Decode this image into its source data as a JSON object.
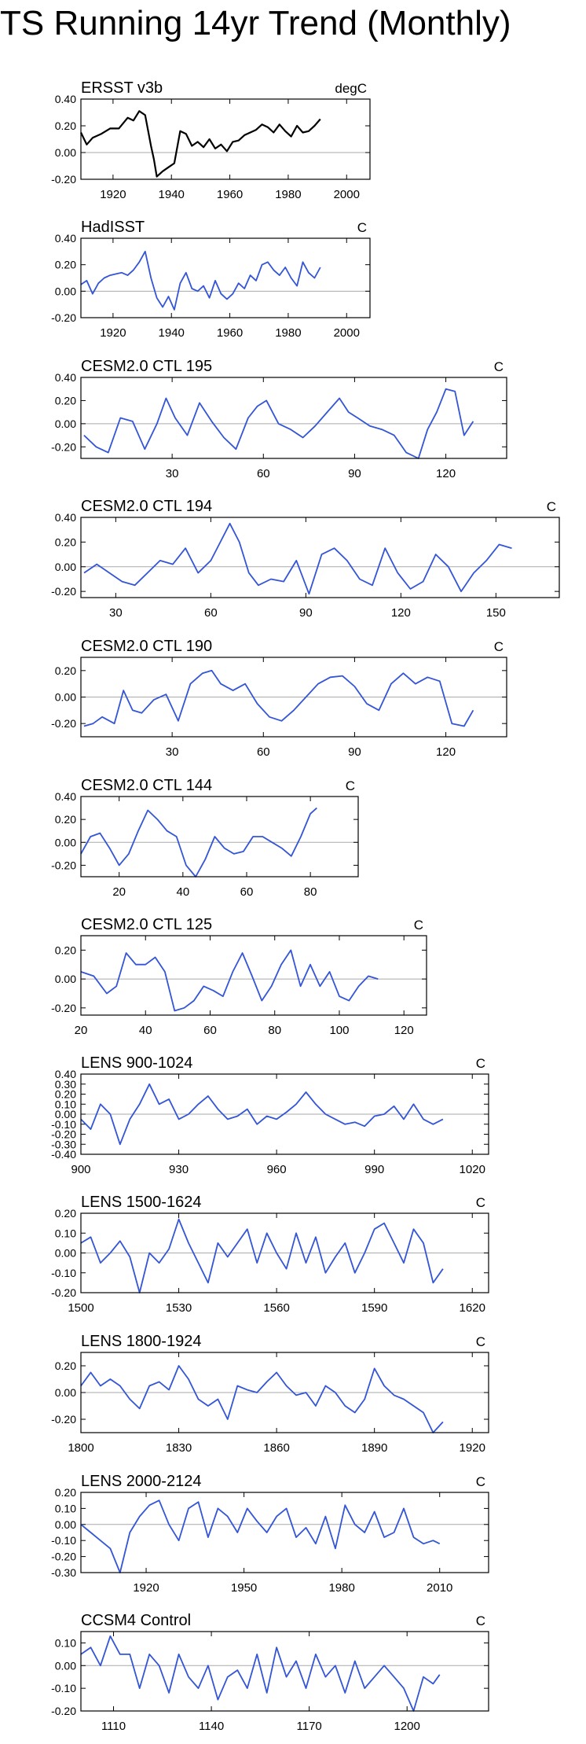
{
  "page": {
    "title": "TS Running 14yr Trend (Monthly)"
  },
  "colors": {
    "black_line": "#000000",
    "blue_line": "#3355d6",
    "zero_line": "#aaaaaa"
  },
  "chart_data": [
    {
      "type": "line",
      "title": "ERSST v3b",
      "units": "degC",
      "color": "#000000",
      "xlim": [
        1909,
        2008
      ],
      "xticks": [
        1920,
        1940,
        1960,
        1980,
        2000
      ],
      "ylim": [
        -0.2,
        0.4
      ],
      "yticks": [
        -0.2,
        0.0,
        0.2,
        0.4
      ],
      "ytick_labels": [
        "-0.20",
        "0.00",
        "0.20",
        "0.40"
      ],
      "x": [
        1909,
        1911,
        1913,
        1916,
        1919,
        1922,
        1925,
        1927,
        1929,
        1931,
        1933,
        1934,
        1935,
        1937,
        1939,
        1941,
        1943,
        1945,
        1947,
        1949,
        1951,
        1953,
        1955,
        1957,
        1959,
        1961,
        1963,
        1965,
        1967,
        1969,
        1971,
        1973,
        1975,
        1977,
        1979,
        1981,
        1983,
        1985,
        1987,
        1989,
        1991
      ],
      "y": [
        0.15,
        0.06,
        0.11,
        0.14,
        0.18,
        0.18,
        0.26,
        0.24,
        0.31,
        0.28,
        0.05,
        -0.05,
        -0.18,
        -0.14,
        -0.11,
        -0.08,
        0.16,
        0.14,
        0.05,
        0.08,
        0.04,
        0.1,
        0.03,
        0.06,
        0.01,
        0.08,
        0.09,
        0.13,
        0.15,
        0.17,
        0.21,
        0.19,
        0.15,
        0.21,
        0.16,
        0.12,
        0.2,
        0.15,
        0.16,
        0.2,
        0.25
      ]
    },
    {
      "type": "line",
      "title": "HadISST",
      "units": "C",
      "color": "#3355d6",
      "xlim": [
        1909,
        2008
      ],
      "xticks": [
        1920,
        1940,
        1960,
        1980,
        2000
      ],
      "ylim": [
        -0.2,
        0.4
      ],
      "yticks": [
        -0.2,
        0.0,
        0.2,
        0.4
      ],
      "ytick_labels": [
        "-0.20",
        "0.00",
        "0.20",
        "0.40"
      ],
      "x": [
        1909,
        1911,
        1913,
        1915,
        1917,
        1919,
        1921,
        1923,
        1925,
        1927,
        1929,
        1931,
        1933,
        1935,
        1937,
        1939,
        1941,
        1943,
        1945,
        1947,
        1949,
        1951,
        1953,
        1955,
        1957,
        1959,
        1961,
        1963,
        1965,
        1967,
        1969,
        1971,
        1973,
        1975,
        1977,
        1979,
        1981,
        1983,
        1985,
        1987,
        1989,
        1991
      ],
      "y": [
        0.05,
        0.08,
        -0.02,
        0.06,
        0.1,
        0.12,
        0.13,
        0.14,
        0.12,
        0.16,
        0.22,
        0.3,
        0.1,
        -0.05,
        -0.12,
        -0.04,
        -0.14,
        0.06,
        0.14,
        0.02,
        0.0,
        0.04,
        -0.05,
        0.08,
        -0.02,
        -0.06,
        -0.02,
        0.06,
        0.02,
        0.12,
        0.08,
        0.2,
        0.22,
        0.16,
        0.12,
        0.18,
        0.1,
        0.04,
        0.22,
        0.14,
        0.1,
        0.18
      ]
    },
    {
      "type": "line",
      "title": "CESM2.0 CTL 195",
      "units": "C",
      "color": "#3355d6",
      "xlim": [
        0,
        140
      ],
      "xticks": [
        30,
        60,
        90,
        120
      ],
      "ylim": [
        -0.3,
        0.4
      ],
      "yticks": [
        -0.2,
        0.0,
        0.2,
        0.4
      ],
      "ytick_labels": [
        "-0.20",
        "0.00",
        "0.20",
        "0.40"
      ],
      "x": [
        1,
        5,
        9,
        13,
        17,
        21,
        25,
        28,
        31,
        35,
        39,
        43,
        47,
        51,
        55,
        58,
        61,
        65,
        69,
        73,
        77,
        81,
        85,
        88,
        91,
        95,
        99,
        103,
        107,
        111,
        114,
        117,
        120,
        123,
        126,
        129
      ],
      "y": [
        -0.1,
        -0.2,
        -0.25,
        0.05,
        0.02,
        -0.22,
        0.0,
        0.22,
        0.05,
        -0.1,
        0.18,
        0.02,
        -0.12,
        -0.22,
        0.05,
        0.15,
        0.2,
        0.0,
        -0.05,
        -0.12,
        -0.02,
        0.1,
        0.22,
        0.1,
        0.05,
        -0.02,
        -0.05,
        -0.1,
        -0.25,
        -0.3,
        -0.05,
        0.1,
        0.3,
        0.28,
        -0.1,
        0.02
      ]
    },
    {
      "type": "line",
      "title": "CESM2.0 CTL 194",
      "units": "C",
      "color": "#3355d6",
      "xlim": [
        19,
        170
      ],
      "xticks": [
        30,
        60,
        90,
        120,
        150
      ],
      "ylim": [
        -0.25,
        0.4
      ],
      "yticks": [
        -0.2,
        0.0,
        0.2,
        0.4
      ],
      "ytick_labels": [
        "-0.20",
        "0.00",
        "0.20",
        "0.40"
      ],
      "x": [
        20,
        24,
        28,
        32,
        36,
        40,
        44,
        48,
        52,
        56,
        60,
        63,
        66,
        69,
        72,
        75,
        79,
        83,
        87,
        91,
        95,
        99,
        103,
        107,
        111,
        115,
        119,
        123,
        127,
        131,
        135,
        139,
        143,
        147,
        151,
        155
      ],
      "y": [
        -0.05,
        0.02,
        -0.05,
        -0.12,
        -0.15,
        -0.05,
        0.05,
        0.02,
        0.15,
        -0.05,
        0.05,
        0.2,
        0.35,
        0.2,
        -0.05,
        -0.15,
        -0.1,
        -0.12,
        0.05,
        -0.22,
        0.1,
        0.15,
        0.05,
        -0.1,
        -0.15,
        0.15,
        -0.05,
        -0.18,
        -0.12,
        0.1,
        0.0,
        -0.2,
        -0.05,
        0.05,
        0.18,
        0.15
      ]
    },
    {
      "type": "line",
      "title": "CESM2.0 CTL 190",
      "units": "C",
      "color": "#3355d6",
      "xlim": [
        0,
        140
      ],
      "xticks": [
        30,
        60,
        90,
        120
      ],
      "ylim": [
        -0.3,
        0.3
      ],
      "yticks": [
        -0.2,
        0.0,
        0.2
      ],
      "ytick_labels": [
        "-0.20",
        "0.00",
        "0.20"
      ],
      "x": [
        1,
        4,
        7,
        11,
        14,
        17,
        20,
        24,
        28,
        32,
        36,
        40,
        43,
        46,
        50,
        54,
        58,
        62,
        66,
        70,
        74,
        78,
        82,
        86,
        90,
        94,
        98,
        102,
        106,
        110,
        114,
        118,
        122,
        126,
        129
      ],
      "y": [
        -0.22,
        -0.2,
        -0.15,
        -0.2,
        0.05,
        -0.1,
        -0.12,
        -0.02,
        0.02,
        -0.18,
        0.1,
        0.18,
        0.2,
        0.1,
        0.05,
        0.1,
        -0.05,
        -0.15,
        -0.18,
        -0.1,
        0.0,
        0.1,
        0.15,
        0.16,
        0.08,
        -0.05,
        -0.1,
        0.1,
        0.18,
        0.1,
        0.15,
        0.12,
        -0.2,
        -0.22,
        -0.1
      ]
    },
    {
      "type": "line",
      "title": "CESM2.0 CTL 144",
      "units": "C",
      "color": "#3355d6",
      "xlim": [
        8,
        95
      ],
      "xticks": [
        20,
        40,
        60,
        80
      ],
      "ylim": [
        -0.3,
        0.4
      ],
      "yticks": [
        -0.2,
        0.0,
        0.2,
        0.4
      ],
      "ytick_labels": [
        "-0.20",
        "0.00",
        "0.20",
        "0.40"
      ],
      "x": [
        8,
        11,
        14,
        17,
        20,
        23,
        26,
        29,
        32,
        35,
        38,
        41,
        44,
        47,
        50,
        53,
        56,
        59,
        62,
        65,
        68,
        71,
        74,
        77,
        80,
        82
      ],
      "y": [
        -0.1,
        0.05,
        0.08,
        -0.05,
        -0.2,
        -0.1,
        0.1,
        0.28,
        0.2,
        0.1,
        0.05,
        -0.2,
        -0.3,
        -0.15,
        0.05,
        -0.05,
        -0.1,
        -0.08,
        0.05,
        0.05,
        0.0,
        -0.05,
        -0.12,
        0.05,
        0.25,
        0.3
      ]
    },
    {
      "type": "line",
      "title": "CESM2.0 CTL 125",
      "units": "C",
      "color": "#3355d6",
      "xlim": [
        20,
        127
      ],
      "xticks": [
        20,
        40,
        60,
        80,
        100,
        120
      ],
      "ylim": [
        -0.25,
        0.3
      ],
      "yticks": [
        -0.2,
        0.0,
        0.2
      ],
      "ytick_labels": [
        "-0.20",
        "0.00",
        "0.20"
      ],
      "x": [
        20,
        24,
        28,
        31,
        34,
        37,
        40,
        43,
        46,
        49,
        52,
        55,
        58,
        61,
        64,
        67,
        70,
        73,
        76,
        79,
        82,
        85,
        88,
        91,
        94,
        97,
        100,
        103,
        106,
        109,
        112
      ],
      "y": [
        0.05,
        0.02,
        -0.1,
        -0.05,
        0.18,
        0.1,
        0.1,
        0.15,
        0.05,
        -0.22,
        -0.2,
        -0.15,
        -0.05,
        -0.08,
        -0.12,
        0.05,
        0.18,
        0.02,
        -0.15,
        -0.05,
        0.1,
        0.2,
        -0.05,
        0.1,
        -0.05,
        0.05,
        -0.12,
        -0.15,
        -0.05,
        0.02,
        0.0
      ]
    },
    {
      "type": "line",
      "title": "LENS 900-1024",
      "units": "C",
      "color": "#3355d6",
      "xlim": [
        900,
        1025
      ],
      "xticks": [
        900,
        930,
        960,
        990,
        1020
      ],
      "ylim": [
        -0.4,
        0.4
      ],
      "yticks": [
        -0.4,
        -0.3,
        -0.2,
        -0.1,
        0.0,
        0.1,
        0.2,
        0.3,
        0.4
      ],
      "ytick_labels": [
        "-0.40",
        "-0.30",
        "-0.20",
        "-0.10",
        "0.00",
        "0.10",
        "0.20",
        "0.30",
        "0.40"
      ],
      "x": [
        900,
        903,
        906,
        909,
        912,
        915,
        918,
        921,
        924,
        927,
        930,
        933,
        936,
        939,
        942,
        945,
        948,
        951,
        954,
        957,
        960,
        963,
        966,
        969,
        972,
        975,
        978,
        981,
        984,
        987,
        990,
        993,
        996,
        999,
        1002,
        1005,
        1008,
        1011
      ],
      "y": [
        -0.05,
        -0.15,
        0.1,
        0.0,
        -0.3,
        -0.05,
        0.1,
        0.3,
        0.1,
        0.15,
        -0.05,
        0.0,
        0.1,
        0.18,
        0.05,
        -0.05,
        -0.02,
        0.05,
        -0.1,
        -0.02,
        -0.05,
        0.02,
        0.1,
        0.22,
        0.1,
        0.0,
        -0.05,
        -0.1,
        -0.08,
        -0.12,
        -0.02,
        0.0,
        0.08,
        -0.05,
        0.1,
        -0.05,
        -0.1,
        -0.05
      ]
    },
    {
      "type": "line",
      "title": "LENS 1500-1624",
      "units": "C",
      "color": "#3355d6",
      "xlim": [
        1500,
        1625
      ],
      "xticks": [
        1500,
        1530,
        1560,
        1590,
        1620
      ],
      "ylim": [
        -0.2,
        0.2
      ],
      "yticks": [
        -0.2,
        -0.1,
        0.0,
        0.1,
        0.2
      ],
      "ytick_labels": [
        "-0.20",
        "-0.10",
        "0.00",
        "0.10",
        "0.20"
      ],
      "x": [
        1500,
        1503,
        1506,
        1509,
        1512,
        1515,
        1518,
        1521,
        1524,
        1527,
        1530,
        1533,
        1536,
        1539,
        1542,
        1545,
        1548,
        1551,
        1554,
        1557,
        1560,
        1563,
        1566,
        1569,
        1572,
        1575,
        1578,
        1581,
        1584,
        1587,
        1590,
        1593,
        1596,
        1599,
        1602,
        1605,
        1608,
        1611
      ],
      "y": [
        0.05,
        0.08,
        -0.05,
        0.0,
        0.06,
        -0.02,
        -0.2,
        0.0,
        -0.05,
        0.02,
        0.17,
        0.05,
        -0.05,
        -0.15,
        0.05,
        -0.02,
        0.05,
        0.12,
        -0.05,
        0.1,
        0.0,
        -0.08,
        0.1,
        -0.05,
        0.08,
        -0.1,
        -0.02,
        0.05,
        -0.1,
        0.0,
        0.12,
        0.15,
        0.05,
        -0.05,
        0.12,
        0.05,
        -0.15,
        -0.08
      ]
    },
    {
      "type": "line",
      "title": "LENS 1800-1924",
      "units": "C",
      "color": "#3355d6",
      "xlim": [
        1800,
        1925
      ],
      "xticks": [
        1800,
        1830,
        1860,
        1890,
        1920
      ],
      "ylim": [
        -0.3,
        0.3
      ],
      "yticks": [
        -0.2,
        0.0,
        0.2
      ],
      "ytick_labels": [
        "-0.20",
        "0.00",
        "0.20"
      ],
      "x": [
        1800,
        1803,
        1806,
        1809,
        1812,
        1815,
        1818,
        1821,
        1824,
        1827,
        1830,
        1833,
        1836,
        1839,
        1842,
        1845,
        1848,
        1851,
        1854,
        1857,
        1860,
        1863,
        1866,
        1869,
        1872,
        1875,
        1878,
        1881,
        1884,
        1887,
        1890,
        1893,
        1896,
        1899,
        1902,
        1905,
        1908,
        1911
      ],
      "y": [
        0.05,
        0.15,
        0.05,
        0.1,
        0.05,
        -0.05,
        -0.12,
        0.05,
        0.08,
        0.02,
        0.2,
        0.1,
        -0.05,
        -0.1,
        -0.05,
        -0.2,
        0.05,
        0.02,
        0.0,
        0.08,
        0.15,
        0.05,
        -0.02,
        0.0,
        -0.1,
        0.05,
        0.0,
        -0.1,
        -0.15,
        -0.05,
        0.18,
        0.05,
        -0.02,
        -0.05,
        -0.1,
        -0.15,
        -0.3,
        -0.22
      ]
    },
    {
      "type": "line",
      "title": "LENS 2000-2124",
      "units": "C",
      "color": "#3355d6",
      "xlim": [
        1900,
        2025
      ],
      "xticks": [
        1920,
        1950,
        1980,
        2010
      ],
      "ylim": [
        -0.3,
        0.2
      ],
      "yticks": [
        -0.3,
        -0.2,
        -0.1,
        0.0,
        0.1,
        0.2
      ],
      "ytick_labels": [
        "-0.30",
        "-0.20",
        "-0.10",
        "0.00",
        "0.10",
        "0.20"
      ],
      "x": [
        1900,
        1903,
        1906,
        1909,
        1912,
        1915,
        1918,
        1921,
        1924,
        1927,
        1930,
        1933,
        1936,
        1939,
        1942,
        1945,
        1948,
        1951,
        1954,
        1957,
        1960,
        1963,
        1966,
        1969,
        1972,
        1975,
        1978,
        1981,
        1984,
        1987,
        1990,
        1993,
        1996,
        1999,
        2002,
        2005,
        2008,
        2010
      ],
      "y": [
        0.0,
        -0.05,
        -0.1,
        -0.15,
        -0.3,
        -0.05,
        0.05,
        0.12,
        0.15,
        0.0,
        -0.1,
        0.1,
        0.14,
        -0.08,
        0.1,
        0.05,
        -0.05,
        0.1,
        0.02,
        -0.05,
        0.05,
        0.1,
        -0.08,
        -0.02,
        -0.12,
        0.05,
        -0.15,
        0.12,
        0.0,
        -0.05,
        0.08,
        -0.08,
        -0.05,
        0.1,
        -0.08,
        -0.12,
        -0.1,
        -0.12
      ]
    },
    {
      "type": "line",
      "title": "CCSM4 Control",
      "units": "C",
      "color": "#3355d6",
      "xlim": [
        1100,
        1225
      ],
      "xticks": [
        1110,
        1140,
        1170,
        1200
      ],
      "ylim": [
        -0.2,
        0.15
      ],
      "yticks": [
        -0.2,
        -0.1,
        0.0,
        0.1
      ],
      "ytick_labels": [
        "-0.20",
        "-0.10",
        "0.00",
        "0.10"
      ],
      "x": [
        1100,
        1103,
        1106,
        1109,
        1112,
        1115,
        1118,
        1121,
        1124,
        1127,
        1130,
        1133,
        1136,
        1139,
        1142,
        1145,
        1148,
        1151,
        1154,
        1157,
        1160,
        1163,
        1166,
        1169,
        1172,
        1175,
        1178,
        1181,
        1184,
        1187,
        1190,
        1193,
        1196,
        1199,
        1202,
        1205,
        1208,
        1210
      ],
      "y": [
        0.05,
        0.08,
        0.0,
        0.13,
        0.05,
        0.05,
        -0.1,
        0.05,
        0.0,
        -0.12,
        0.05,
        -0.05,
        -0.1,
        0.0,
        -0.15,
        -0.05,
        -0.02,
        -0.1,
        0.05,
        -0.12,
        0.08,
        -0.05,
        0.02,
        -0.1,
        0.05,
        -0.05,
        0.0,
        -0.12,
        0.02,
        -0.1,
        -0.05,
        0.0,
        -0.05,
        -0.1,
        -0.2,
        -0.05,
        -0.08,
        -0.04
      ]
    }
  ]
}
